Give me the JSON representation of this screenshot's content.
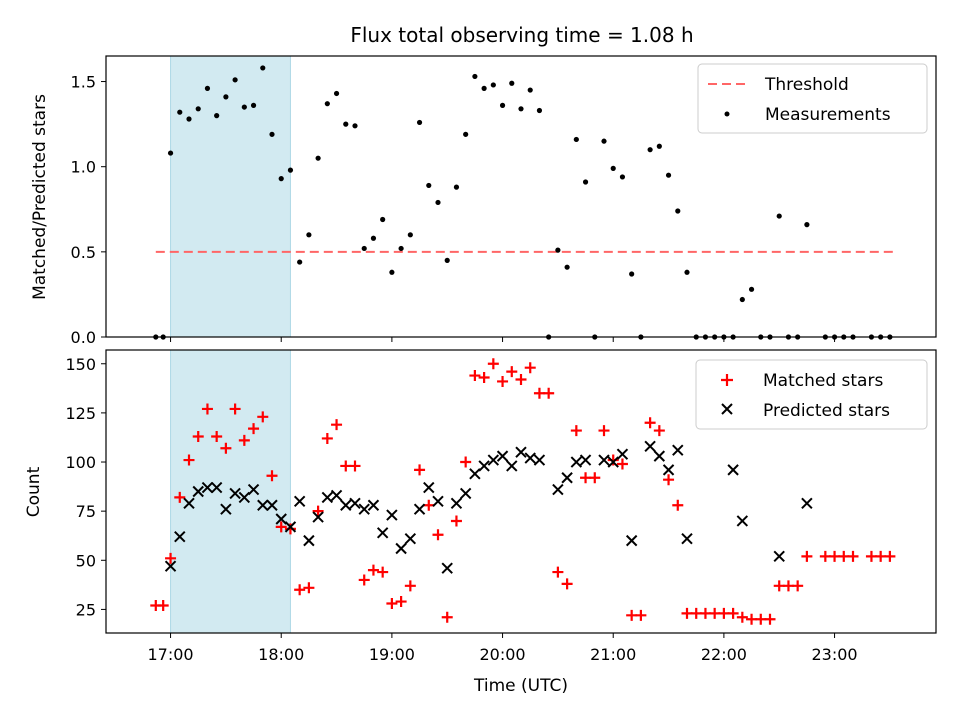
{
  "title": "Flux total observing time = 1.08 h",
  "xlabel": "Time (UTC)",
  "x_ticks": [
    "17:00",
    "18:00",
    "19:00",
    "20:00",
    "21:00",
    "22:00",
    "23:00"
  ],
  "shaded_interval": {
    "start": "17:00",
    "end": "18:05",
    "color": "#add8e6"
  },
  "colors": {
    "threshold": "#ff6666",
    "measurements": "#000000",
    "matched": "#ff0000",
    "predicted": "#000000"
  },
  "chart_data": [
    {
      "type": "scatter",
      "ylabel": "Matched/Predicted stars",
      "ylim": [
        0,
        1.65
      ],
      "y_ticks": [
        "0.0",
        "0.5",
        "1.0",
        "1.5"
      ],
      "legend_position": "top-right",
      "threshold": {
        "name": "Threshold",
        "value": 0.5,
        "x_range": [
          "16:52",
          "23:33"
        ]
      },
      "series": [
        {
          "name": "Measurements",
          "points": [
            [
              "16:52",
              0
            ],
            [
              "16:56",
              0
            ],
            [
              "17:00",
              1.08
            ],
            [
              "17:05",
              1.32
            ],
            [
              "17:10",
              1.28
            ],
            [
              "17:15",
              1.34
            ],
            [
              "17:20",
              1.46
            ],
            [
              "17:25",
              1.3
            ],
            [
              "17:30",
              1.41
            ],
            [
              "17:35",
              1.51
            ],
            [
              "17:40",
              1.35
            ],
            [
              "17:45",
              1.36
            ],
            [
              "17:50",
              1.58
            ],
            [
              "17:55",
              1.19
            ],
            [
              "18:00",
              0.93
            ],
            [
              "18:05",
              0.98
            ],
            [
              "18:10",
              0.44
            ],
            [
              "18:15",
              0.6
            ],
            [
              "18:20",
              1.05
            ],
            [
              "18:25",
              1.37
            ],
            [
              "18:30",
              1.43
            ],
            [
              "18:35",
              1.25
            ],
            [
              "18:40",
              1.24
            ],
            [
              "18:45",
              0.52
            ],
            [
              "18:50",
              0.58
            ],
            [
              "18:55",
              0.69
            ],
            [
              "19:00",
              0.38
            ],
            [
              "19:05",
              0.52
            ],
            [
              "19:10",
              0.6
            ],
            [
              "19:15",
              1.26
            ],
            [
              "19:20",
              0.89
            ],
            [
              "19:25",
              0.79
            ],
            [
              "19:30",
              0.45
            ],
            [
              "19:35",
              0.88
            ],
            [
              "19:40",
              1.19
            ],
            [
              "19:45",
              1.53
            ],
            [
              "19:50",
              1.46
            ],
            [
              "19:55",
              1.48
            ],
            [
              "20:00",
              1.36
            ],
            [
              "20:05",
              1.49
            ],
            [
              "20:10",
              1.34
            ],
            [
              "20:15",
              1.45
            ],
            [
              "20:20",
              1.33
            ],
            [
              "20:25",
              0
            ],
            [
              "20:30",
              0.51
            ],
            [
              "20:35",
              0.41
            ],
            [
              "20:40",
              1.16
            ],
            [
              "20:45",
              0.91
            ],
            [
              "20:50",
              0
            ],
            [
              "20:55",
              1.15
            ],
            [
              "21:00",
              0.99
            ],
            [
              "21:05",
              0.94
            ],
            [
              "21:10",
              0.37
            ],
            [
              "21:15",
              0
            ],
            [
              "21:20",
              1.1
            ],
            [
              "21:25",
              1.12
            ],
            [
              "21:30",
              0.95
            ],
            [
              "21:35",
              0.74
            ],
            [
              "21:40",
              0.38
            ],
            [
              "21:45",
              0
            ],
            [
              "21:50",
              0
            ],
            [
              "21:55",
              0
            ],
            [
              "22:00",
              0
            ],
            [
              "22:05",
              0
            ],
            [
              "22:10",
              0.22
            ],
            [
              "22:15",
              0.28
            ],
            [
              "22:20",
              0
            ],
            [
              "22:25",
              0
            ],
            [
              "22:30",
              0.71
            ],
            [
              "22:35",
              0
            ],
            [
              "22:40",
              0
            ],
            [
              "22:45",
              0.66
            ],
            [
              "22:55",
              0
            ],
            [
              "23:00",
              0
            ],
            [
              "23:05",
              0
            ],
            [
              "23:10",
              0
            ],
            [
              "23:20",
              0
            ],
            [
              "23:25",
              0
            ],
            [
              "23:30",
              0
            ]
          ]
        }
      ]
    },
    {
      "type": "scatter",
      "ylabel": "Count",
      "ylim": [
        13,
        157
      ],
      "y_ticks": [
        "25",
        "50",
        "75",
        "100",
        "125",
        "150"
      ],
      "legend_position": "top-right",
      "series": [
        {
          "name": "Matched stars",
          "marker": "plus",
          "points": [
            [
              "16:52",
              27
            ],
            [
              "16:56",
              27
            ],
            [
              "17:00",
              51
            ],
            [
              "17:05",
              82
            ],
            [
              "17:10",
              101
            ],
            [
              "17:15",
              113
            ],
            [
              "17:20",
              127
            ],
            [
              "17:25",
              113
            ],
            [
              "17:30",
              107
            ],
            [
              "17:35",
              127
            ],
            [
              "17:40",
              111
            ],
            [
              "17:45",
              117
            ],
            [
              "17:50",
              123
            ],
            [
              "17:55",
              93
            ],
            [
              "18:00",
              67
            ],
            [
              "18:05",
              66
            ],
            [
              "18:10",
              35
            ],
            [
              "18:15",
              36
            ],
            [
              "18:20",
              75
            ],
            [
              "18:25",
              112
            ],
            [
              "18:30",
              119
            ],
            [
              "18:35",
              98
            ],
            [
              "18:40",
              98
            ],
            [
              "18:45",
              40
            ],
            [
              "18:50",
              45
            ],
            [
              "18:55",
              44
            ],
            [
              "19:00",
              28
            ],
            [
              "19:05",
              29
            ],
            [
              "19:10",
              37
            ],
            [
              "19:15",
              96
            ],
            [
              "19:20",
              78
            ],
            [
              "19:25",
              63
            ],
            [
              "19:30",
              21
            ],
            [
              "19:35",
              70
            ],
            [
              "19:40",
              100
            ],
            [
              "19:45",
              144
            ],
            [
              "19:50",
              143
            ],
            [
              "19:55",
              150
            ],
            [
              "20:00",
              141
            ],
            [
              "20:05",
              146
            ],
            [
              "20:10",
              142
            ],
            [
              "20:15",
              148
            ],
            [
              "20:20",
              135
            ],
            [
              "20:25",
              135
            ],
            [
              "20:30",
              44
            ],
            [
              "20:35",
              38
            ],
            [
              "20:40",
              116
            ],
            [
              "20:45",
              92
            ],
            [
              "20:50",
              92
            ],
            [
              "20:55",
              116
            ],
            [
              "21:00",
              101
            ],
            [
              "21:05",
              99
            ],
            [
              "21:10",
              22
            ],
            [
              "21:15",
              22
            ],
            [
              "21:20",
              120
            ],
            [
              "21:25",
              116
            ],
            [
              "21:30",
              91
            ],
            [
              "21:35",
              78
            ],
            [
              "21:40",
              23
            ],
            [
              "21:45",
              23
            ],
            [
              "21:50",
              23
            ],
            [
              "21:55",
              23
            ],
            [
              "22:00",
              23
            ],
            [
              "22:05",
              23
            ],
            [
              "22:10",
              21
            ],
            [
              "22:15",
              20
            ],
            [
              "22:20",
              20
            ],
            [
              "22:25",
              20
            ],
            [
              "22:30",
              37
            ],
            [
              "22:35",
              37
            ],
            [
              "22:40",
              37
            ],
            [
              "22:45",
              52
            ],
            [
              "22:55",
              52
            ],
            [
              "23:00",
              52
            ],
            [
              "23:05",
              52
            ],
            [
              "23:10",
              52
            ],
            [
              "23:20",
              52
            ],
            [
              "23:25",
              52
            ],
            [
              "23:30",
              52
            ]
          ]
        },
        {
          "name": "Predicted stars",
          "marker": "x",
          "points": [
            [
              "17:00",
              47
            ],
            [
              "17:05",
              62
            ],
            [
              "17:10",
              79
            ],
            [
              "17:15",
              85
            ],
            [
              "17:20",
              87
            ],
            [
              "17:25",
              87
            ],
            [
              "17:30",
              76
            ],
            [
              "17:35",
              84
            ],
            [
              "17:40",
              82
            ],
            [
              "17:45",
              86
            ],
            [
              "17:50",
              78
            ],
            [
              "17:55",
              78
            ],
            [
              "18:00",
              71
            ],
            [
              "18:05",
              67
            ],
            [
              "18:10",
              80
            ],
            [
              "18:15",
              60
            ],
            [
              "18:20",
              72
            ],
            [
              "18:25",
              82
            ],
            [
              "18:30",
              83
            ],
            [
              "18:35",
              78
            ],
            [
              "18:40",
              79
            ],
            [
              "18:45",
              76
            ],
            [
              "18:50",
              78
            ],
            [
              "18:55",
              64
            ],
            [
              "19:00",
              73
            ],
            [
              "19:05",
              56
            ],
            [
              "19:10",
              61
            ],
            [
              "19:15",
              76
            ],
            [
              "19:20",
              87
            ],
            [
              "19:25",
              80
            ],
            [
              "19:30",
              46
            ],
            [
              "19:35",
              79
            ],
            [
              "19:40",
              84
            ],
            [
              "19:45",
              94
            ],
            [
              "19:50",
              98
            ],
            [
              "19:55",
              101
            ],
            [
              "20:00",
              103
            ],
            [
              "20:05",
              98
            ],
            [
              "20:10",
              105
            ],
            [
              "20:15",
              102
            ],
            [
              "20:20",
              101
            ],
            [
              "20:30",
              86
            ],
            [
              "20:35",
              92
            ],
            [
              "20:40",
              100
            ],
            [
              "20:45",
              101
            ],
            [
              "20:55",
              101
            ],
            [
              "21:00",
              100
            ],
            [
              "21:05",
              104
            ],
            [
              "21:10",
              60
            ],
            [
              "21:20",
              108
            ],
            [
              "21:25",
              103
            ],
            [
              "21:30",
              96
            ],
            [
              "21:35",
              106
            ],
            [
              "21:40",
              61
            ],
            [
              "22:05",
              96
            ],
            [
              "22:10",
              70
            ],
            [
              "22:30",
              52
            ],
            [
              "22:45",
              79
            ]
          ]
        }
      ]
    }
  ]
}
